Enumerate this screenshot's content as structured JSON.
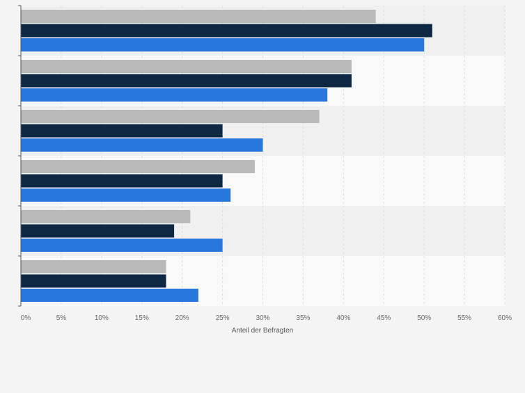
{
  "chart_data": {
    "type": "bar",
    "orientation": "horizontal",
    "categories": [
      "",
      "",
      "",
      "",
      "",
      ""
    ],
    "series": [
      {
        "values": [
          44,
          41,
          37,
          29,
          21,
          18
        ]
      },
      {
        "values": [
          51,
          41,
          25,
          25,
          19,
          18
        ]
      },
      {
        "values": [
          50,
          38,
          30,
          26,
          25,
          22
        ]
      }
    ],
    "xlabel": "Anteil der Befragten",
    "ylabel": "",
    "xlim": [
      0,
      60
    ],
    "x_ticks": [
      "0%",
      "5%",
      "10%",
      "15%",
      "20%",
      "25%",
      "30%",
      "35%",
      "40%",
      "45%",
      "50%",
      "55%",
      "60%"
    ],
    "grid": true,
    "legend": "none"
  },
  "colors": {
    "series": [
      "#b9b9b9",
      "#0e2743",
      "#2777dd"
    ],
    "band_dark": "#f0f0f0",
    "band_light": "#f9f9f9",
    "grid": "#dcdcdc",
    "axis": "#555555",
    "tick_text": "#666666"
  }
}
